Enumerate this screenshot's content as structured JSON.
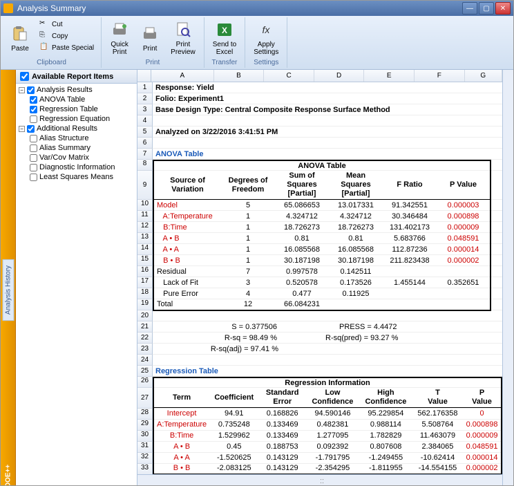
{
  "window": {
    "title": "Analysis Summary"
  },
  "ribbon": {
    "paste": "Paste",
    "cut": "Cut",
    "copy": "Copy",
    "paste_special": "Paste Special",
    "clipboard_label": "Clipboard",
    "quick_print": "Quick\nPrint",
    "print": "Print",
    "print_preview": "Print\nPreview",
    "print_label": "Print",
    "send_excel": "Send to\nExcel",
    "transfer_label": "Transfer",
    "apply_settings": "Apply\nSettings",
    "settings_label": "Settings"
  },
  "sidebar": {
    "doe_label": "DOE++",
    "history_label": "Analysis History"
  },
  "tree": {
    "header": "Available Report Items",
    "groups": [
      {
        "label": "Analysis Results",
        "children": [
          {
            "label": "ANOVA Table",
            "checked": true
          },
          {
            "label": "Regression Table",
            "checked": true
          },
          {
            "label": "Regression Equation",
            "checked": false
          }
        ]
      },
      {
        "label": "Additional Results",
        "children": [
          {
            "label": "Alias Structure",
            "checked": false
          },
          {
            "label": "Alias Summary",
            "checked": false
          },
          {
            "label": "Var/Cov Matrix",
            "checked": false
          },
          {
            "label": "Diagnostic Information",
            "checked": false
          },
          {
            "label": "Least Squares Means",
            "checked": false
          }
        ]
      }
    ]
  },
  "columns": {
    "letters": [
      "A",
      "B",
      "C",
      "D",
      "E",
      "F",
      "G"
    ],
    "widths": [
      100,
      80,
      80,
      80,
      80,
      80,
      60
    ]
  },
  "info_rows": {
    "r1": "Response: Yield",
    "r2": "Folio: Experiment1",
    "r3": "Base Design Type: Central Composite Response Surface Method",
    "r5": "Analyzed on 3/22/2016 3:41:51 PM",
    "r7": "ANOVA Table",
    "r25": "Regression Table"
  },
  "anova": {
    "title": "ANOVA Table",
    "headers": [
      "Source of Variation",
      "Degrees of Freedom",
      "Sum of Squares [Partial]",
      "Mean Squares [Partial]",
      "F Ratio",
      "P Value"
    ],
    "rows": [
      {
        "n": 10,
        "c": [
          "Model",
          "5",
          "65.086653",
          "13.017331",
          "91.342551",
          "0.000003"
        ],
        "red": [
          0,
          5
        ]
      },
      {
        "n": 11,
        "c": [
          " A:Temperature",
          "1",
          "4.324712",
          "4.324712",
          "30.346484",
          "0.000898"
        ],
        "red": [
          0,
          5
        ],
        "indent": 1
      },
      {
        "n": 12,
        "c": [
          " B:Time",
          "1",
          "18.726273",
          "18.726273",
          "131.402173",
          "0.000009"
        ],
        "red": [
          0,
          5
        ],
        "indent": 1
      },
      {
        "n": 13,
        "c": [
          " A • B",
          "1",
          "0.81",
          "0.81",
          "5.683766",
          "0.048591"
        ],
        "red": [
          0,
          5
        ],
        "indent": 1
      },
      {
        "n": 14,
        "c": [
          " A • A",
          "1",
          "16.085568",
          "16.085568",
          "112.87236",
          "0.000014"
        ],
        "red": [
          0,
          5
        ],
        "indent": 1
      },
      {
        "n": 15,
        "c": [
          " B • B",
          "1",
          "30.187198",
          "30.187198",
          "211.823438",
          "0.000002"
        ],
        "red": [
          0,
          5
        ],
        "indent": 1
      },
      {
        "n": 16,
        "c": [
          "Residual",
          "7",
          "0.997578",
          "0.142511",
          "",
          ""
        ],
        "red": []
      },
      {
        "n": 17,
        "c": [
          " Lack of Fit",
          "3",
          "0.520578",
          "0.173526",
          "1.455144",
          "0.352651"
        ],
        "red": [],
        "indent": 1
      },
      {
        "n": 18,
        "c": [
          " Pure Error",
          "4",
          "0.477",
          "0.11925",
          "",
          ""
        ],
        "red": [],
        "indent": 1
      },
      {
        "n": 19,
        "c": [
          "Total",
          "12",
          "66.084231",
          "",
          "",
          ""
        ],
        "red": []
      }
    ]
  },
  "stats": {
    "s": "S = 0.377506",
    "press": "PRESS = 4.4472",
    "rsq": "R-sq = 98.49 %",
    "rsqpred": "R-sq(pred) = 93.27 %",
    "rsqadj": "R-sq(adj) = 97.41 %"
  },
  "regression": {
    "title": "Regression Information",
    "headers": [
      "Term",
      "Coefficient",
      "Standard Error",
      "Low Confidence",
      "High Confidence",
      "T Value",
      "P Value"
    ],
    "rows": [
      {
        "n": 28,
        "c": [
          "Intercept",
          "94.91",
          "0.168826",
          "94.590146",
          "95.229854",
          "562.176358",
          "0"
        ],
        "red": [
          0,
          6
        ]
      },
      {
        "n": 29,
        "c": [
          "A:Temperature",
          "0.735248",
          "0.133469",
          "0.482381",
          "0.988114",
          "5.508764",
          "0.000898"
        ],
        "red": [
          0,
          6
        ]
      },
      {
        "n": 30,
        "c": [
          "B:Time",
          "1.529962",
          "0.133469",
          "1.277095",
          "1.782829",
          "11.463079",
          "0.000009"
        ],
        "red": [
          0,
          6
        ]
      },
      {
        "n": 31,
        "c": [
          "A • B",
          "0.45",
          "0.188753",
          "0.092392",
          "0.807608",
          "2.384065",
          "0.048591"
        ],
        "red": [
          0,
          6
        ]
      },
      {
        "n": 32,
        "c": [
          "A • A",
          "-1.520625",
          "0.143129",
          "-1.791795",
          "-1.249455",
          "-10.62414",
          "0.000014"
        ],
        "red": [
          0,
          6
        ]
      },
      {
        "n": 33,
        "c": [
          "B • B",
          "-2.083125",
          "0.143129",
          "-2.354295",
          "-1.811955",
          "-14.554155",
          "0.000002"
        ],
        "red": [
          0,
          6
        ]
      }
    ]
  },
  "colors": {
    "red": "#cc0000",
    "link": "#1a5ab8"
  }
}
